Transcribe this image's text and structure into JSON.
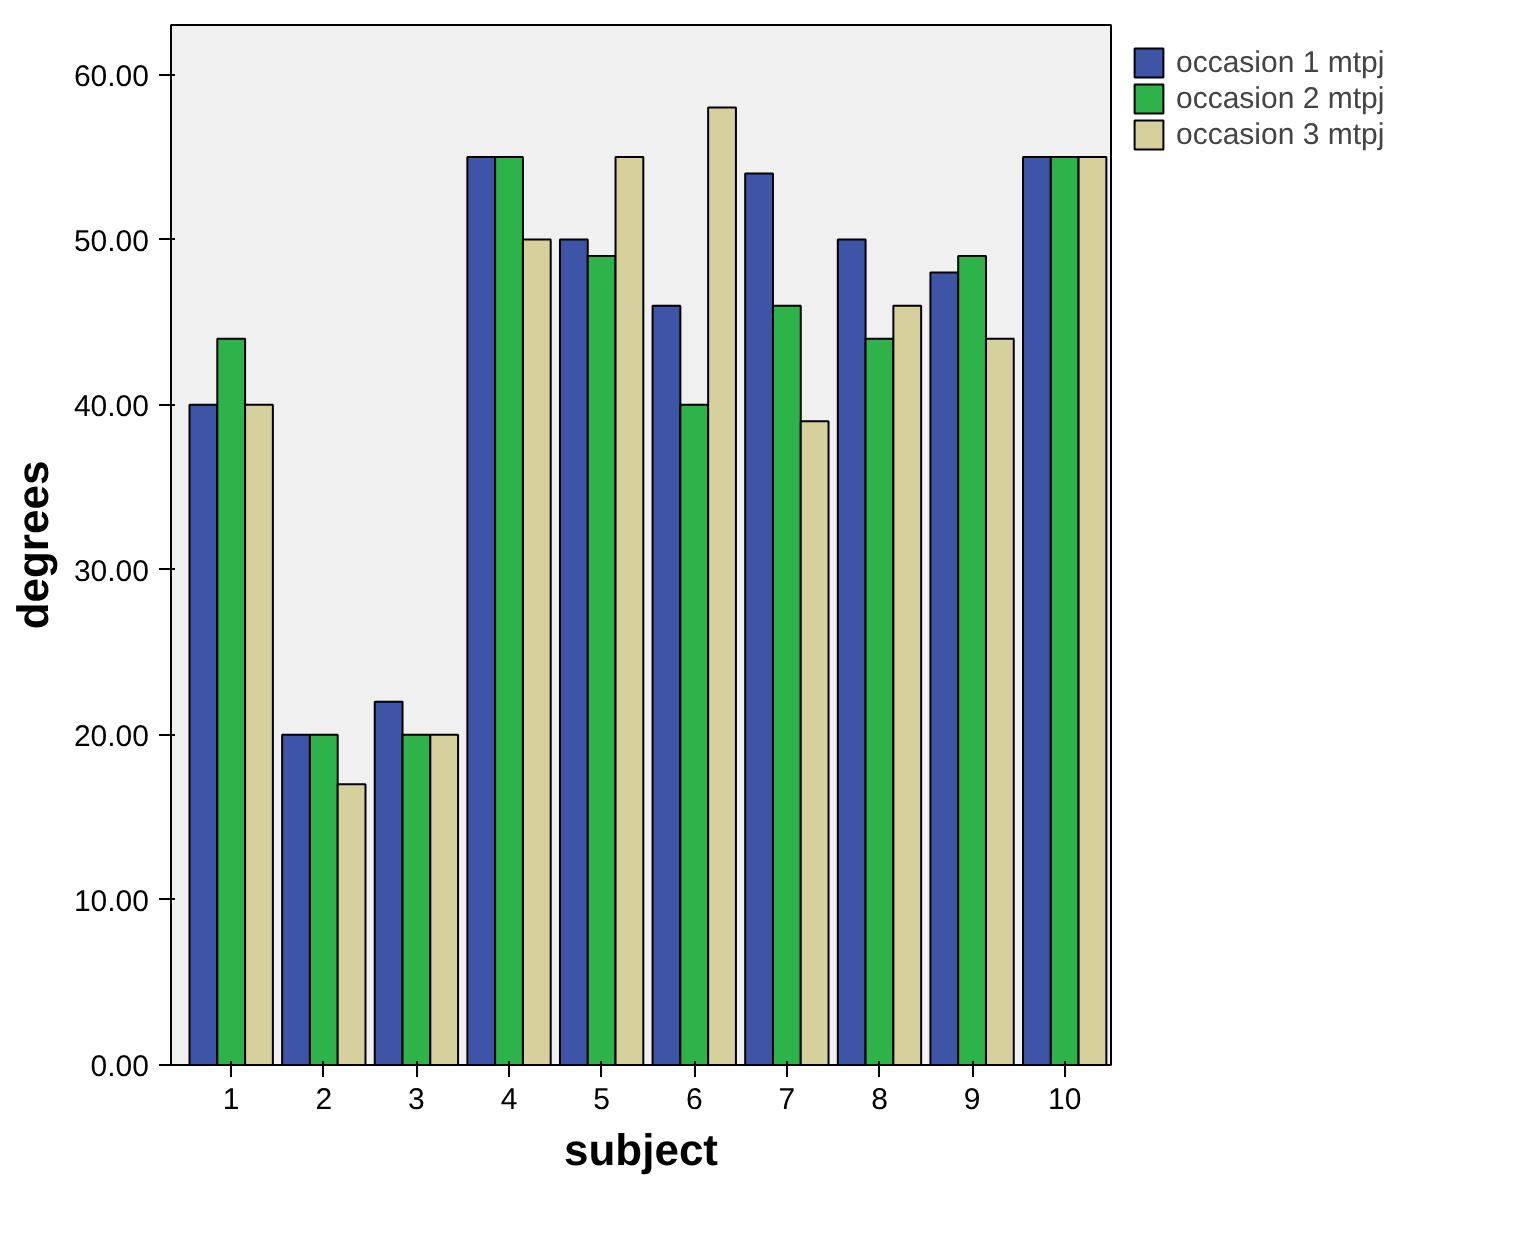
{
  "chart_data": {
    "type": "bar",
    "xlabel": "subject",
    "ylabel": "degrees",
    "categories": [
      "1",
      "2",
      "3",
      "4",
      "5",
      "6",
      "7",
      "8",
      "9",
      "10"
    ],
    "series": [
      {
        "name": "occasion 1 mtpj",
        "color": "#3e54a6",
        "values": [
          40,
          20,
          22,
          55,
          50,
          46,
          54,
          50,
          48,
          55
        ]
      },
      {
        "name": "occasion 2 mtpj",
        "color": "#2db34a",
        "values": [
          44,
          20,
          20,
          55,
          49,
          40,
          46,
          44,
          49,
          55
        ]
      },
      {
        "name": "occasion 3 mtpj",
        "color": "#d6d09c",
        "values": [
          40,
          17,
          20,
          50,
          55,
          58,
          39,
          46,
          44,
          55
        ]
      }
    ],
    "ylim": [
      0,
      63
    ],
    "yticks": [
      {
        "value": 0,
        "label": "0.00"
      },
      {
        "value": 10,
        "label": "10.00"
      },
      {
        "value": 20,
        "label": "20.00"
      },
      {
        "value": 30,
        "label": "30.00"
      },
      {
        "value": 40,
        "label": "40.00"
      },
      {
        "value": 50,
        "label": "50.00"
      },
      {
        "value": 60,
        "label": "60.00"
      }
    ],
    "grid": false,
    "legend": "top right"
  }
}
